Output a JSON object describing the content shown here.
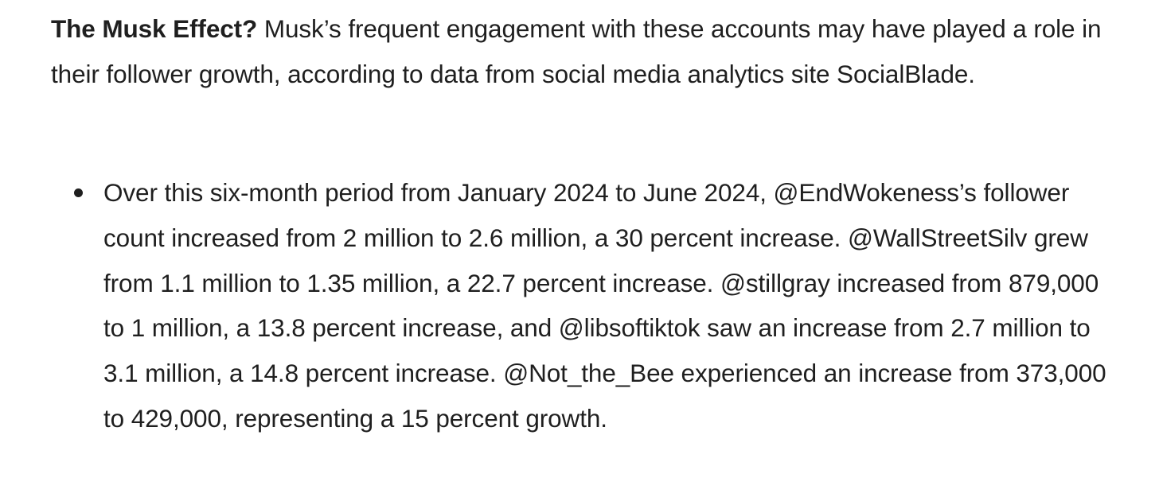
{
  "intro": {
    "lead": "The Musk Effect?",
    "text": "Musk’s frequent engagement with these accounts may have played a role in their follower growth, according to data from social media analytics site SocialBlade."
  },
  "bullets": [
    {
      "icon": "bullet-dot",
      "text": "Over this six-month period from January 2024 to June 2024, @EndWokeness’s follower count increased from 2 million to 2.6 million, a 30 percent increase. @WallStreetSilv grew from 1.1 million to 1.35 million, a 22.7 percent increase. @stillgray increased from 879,000 to 1 million, a 13.8 percent increase, and @libsoftiktok saw an increase from 2.7 million to 3.1 million, a 14.8 percent increase. @Not_the_Bee experienced an increase from 373,000 to 429,000, representing a 15 percent growth."
    }
  ]
}
